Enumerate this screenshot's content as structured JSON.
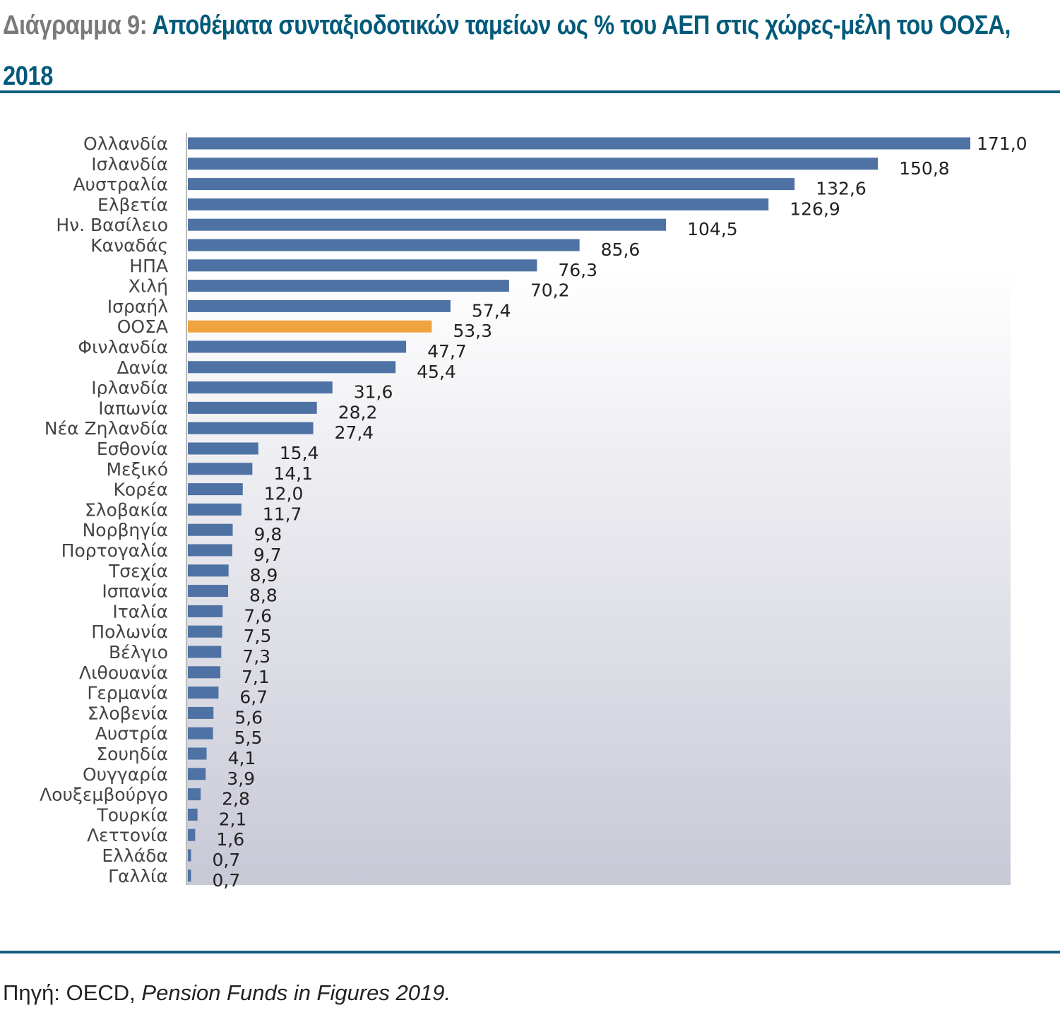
{
  "title": {
    "prefix": "Διάγραμμα 9:",
    "text": "Αποθέματα συνταξιοδοτικών ταμείων ως % του ΑΕΠ στις χώρες-μέλη του ΟΟΣΑ, 2018"
  },
  "source": {
    "label": "Πηγή: OECD,",
    "publication": "Pension Funds in Figures 2019."
  },
  "colors": {
    "bar": "#4e72a4",
    "highlight": "#f0a441",
    "accent": "#12607e"
  },
  "chart_data": {
    "type": "bar",
    "orientation": "horizontal",
    "categories": [
      "Ολλανδία",
      "Ισλανδία",
      "Αυστραλία",
      "Ελβετία",
      "Ην. Βασίλειο",
      "Καναδάς",
      "ΗΠΑ",
      "Χιλή",
      "Ισραήλ",
      "ΟΟΣΑ",
      "Φινλανδία",
      "Δανία",
      "Ιρλανδία",
      "Ιαπωνία",
      "Νέα Ζηλανδία",
      "Εσθονία",
      "Μεξικό",
      "Κορέα",
      "Σλοβακία",
      "Νορβηγία",
      "Πορτογαλία",
      "Τσεχία",
      "Ισπανία",
      "Ιταλία",
      "Πολωνία",
      "Βέλγιο",
      "Λιθουανία",
      "Γερμανία",
      "Σλοβενία",
      "Αυστρία",
      "Σουηδία",
      "Ουγγαρία",
      "Λουξεμβούργο",
      "Τουρκία",
      "Λεττονία",
      "Ελλάδα",
      "Γαλλία"
    ],
    "values": [
      171.0,
      150.8,
      132.6,
      126.9,
      104.5,
      85.6,
      76.3,
      70.2,
      57.4,
      53.3,
      47.7,
      45.4,
      31.6,
      28.2,
      27.4,
      15.4,
      14.1,
      12.0,
      11.7,
      9.8,
      9.7,
      8.9,
      8.8,
      7.6,
      7.5,
      7.3,
      7.1,
      6.7,
      5.6,
      5.5,
      4.1,
      3.9,
      2.8,
      2.1,
      1.6,
      0.7,
      0.7
    ],
    "value_labels": [
      "171,0",
      "150,8",
      "132,6",
      "126,9",
      "104,5",
      "85,6",
      "76,3",
      "70,2",
      "57,4",
      "53,3",
      "47,7",
      "45,4",
      "31,6",
      "28,2",
      "27,4",
      "15,4",
      "14,1",
      "12,0",
      "11,7",
      "9,8",
      "9,7",
      "8,9",
      "8,8",
      "7,6",
      "7,5",
      "7,3",
      "7,1",
      "6,7",
      "5,6",
      "5,5",
      "4,1",
      "3,9",
      "2,8",
      "2,1",
      "1,6",
      "0,7",
      "0,7"
    ],
    "highlight_category": "ΟΟΣΑ",
    "xlim": [
      0,
      180
    ],
    "grid": false,
    "legend": "none"
  }
}
